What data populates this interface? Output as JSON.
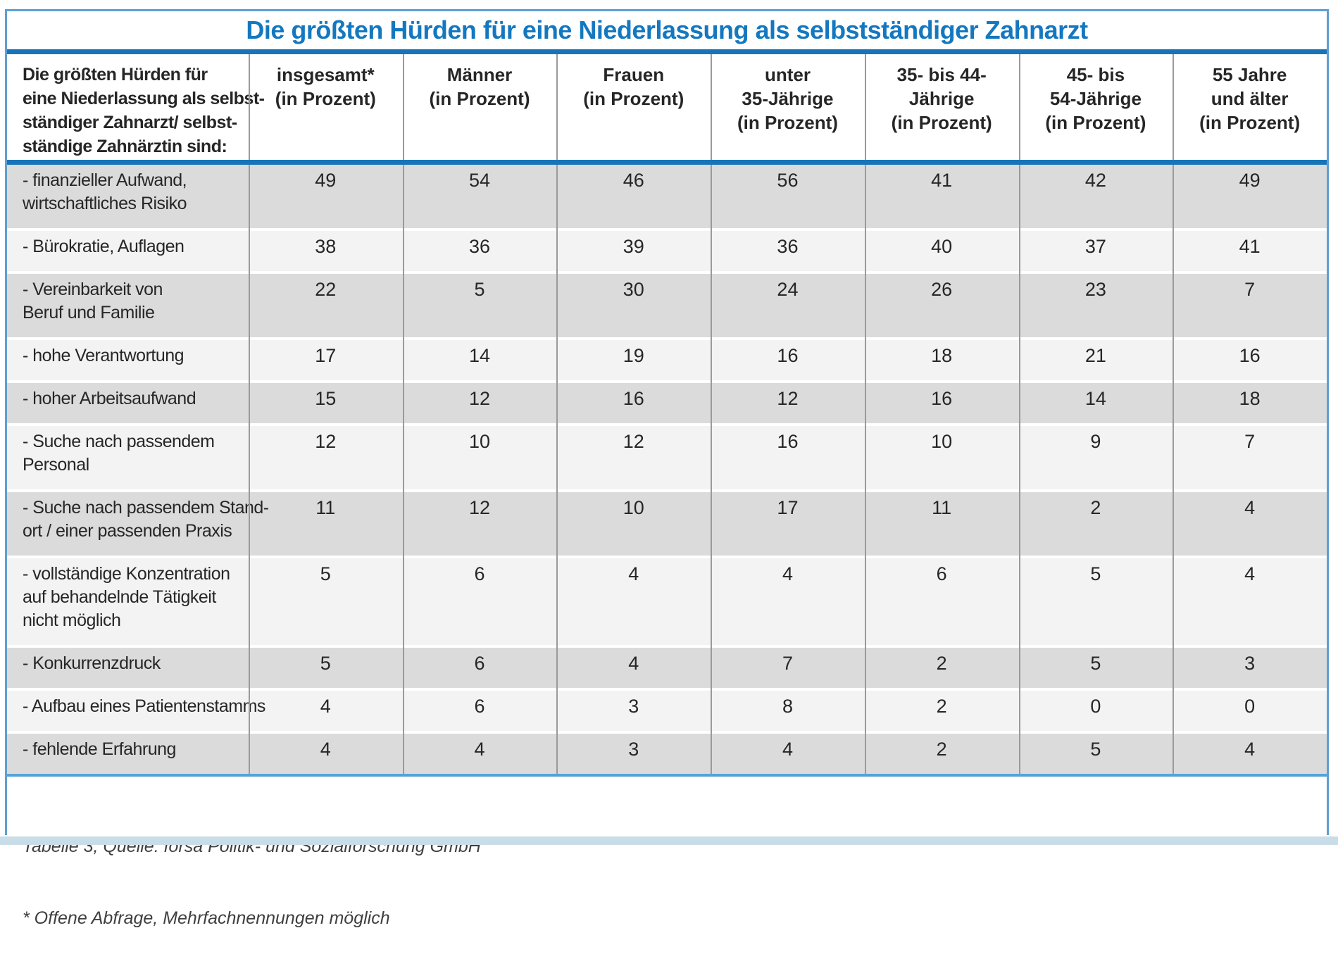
{
  "chart_data": {
    "type": "table",
    "title": "Die größten Hürden für eine Niederlassung als selbstständiger Zahnarzt",
    "row_header": "Die größten Hürden für\neine Niederlassung als selbst-\nständiger Zahnarzt/ selbst-\nständige Zahnärztin sind:",
    "columns": [
      "insgesamt*\n(in Prozent)",
      "Männer\n(in Prozent)",
      "Frauen\n(in Prozent)",
      "unter\n35-Jährige\n(in Prozent)",
      "35- bis 44-\nJährige\n(in Prozent)",
      "45- bis\n54-Jährige\n(in Prozent)",
      "55 Jahre\nund älter\n(in Prozent)"
    ],
    "rows": [
      {
        "label": "- finanzieller Aufwand,\nwirtschaftliches Risiko",
        "values": [
          49,
          54,
          46,
          56,
          41,
          42,
          49
        ]
      },
      {
        "label": "- Bürokratie, Auflagen",
        "values": [
          38,
          36,
          39,
          36,
          40,
          37,
          41
        ]
      },
      {
        "label": "- Vereinbarkeit von\nBeruf und Familie",
        "values": [
          22,
          5,
          30,
          24,
          26,
          23,
          7
        ]
      },
      {
        "label": "- hohe Verantwortung",
        "values": [
          17,
          14,
          19,
          16,
          18,
          21,
          16
        ]
      },
      {
        "label": "- hoher Arbeitsaufwand",
        "values": [
          15,
          12,
          16,
          12,
          16,
          14,
          18
        ]
      },
      {
        "label": "- Suche nach passendem\nPersonal",
        "values": [
          12,
          10,
          12,
          16,
          10,
          9,
          7
        ]
      },
      {
        "label": "- Suche nach passendem Stand-\nort / einer passenden Praxis",
        "values": [
          11,
          12,
          10,
          17,
          11,
          2,
          4
        ]
      },
      {
        "label": "- vollständige Konzentration\nauf behandelnde Tätigkeit\nnicht möglich",
        "values": [
          5,
          6,
          4,
          4,
          6,
          5,
          4
        ]
      },
      {
        "label": "- Konkurrenzdruck",
        "values": [
          5,
          6,
          4,
          7,
          2,
          5,
          3
        ]
      },
      {
        "label": "- Aufbau eines Patientenstamms",
        "values": [
          4,
          6,
          3,
          8,
          2,
          0,
          0
        ]
      },
      {
        "label": "- fehlende Erfahrung",
        "values": [
          4,
          4,
          3,
          4,
          2,
          5,
          4
        ]
      }
    ],
    "legend_position": "none",
    "grid": "column-separators"
  },
  "footer": {
    "source_line": "Tabelle 3, Quelle: forsa Politik- und Sozialforschung GmbH",
    "note_line": "* Offene Abfrage, Mehrfachnennungen möglich"
  },
  "colors": {
    "title_blue": "#1478c0",
    "bar_blue": "#1774b9",
    "frame_blue": "#5f9fd1",
    "divider_blue": "#55a2d8",
    "row_shaded": "#dcdbdb",
    "row_light": "#f4f3f3",
    "bottom_strip": "#c9dde9"
  }
}
